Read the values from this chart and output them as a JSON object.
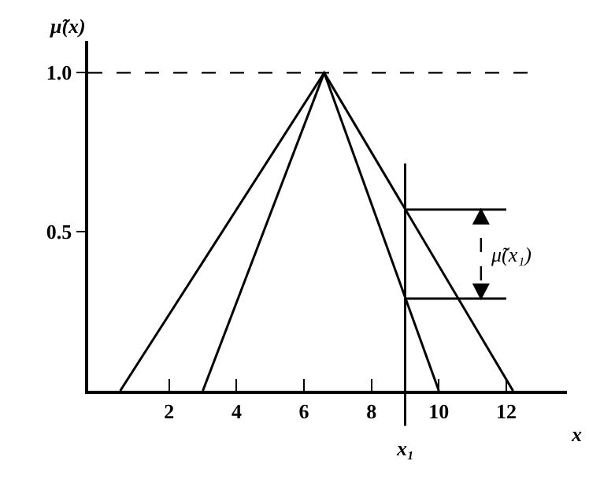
{
  "chart_data": {
    "type": "line",
    "ylabel": "μ̃(x)",
    "xlabel": "x",
    "xlim": [
      -0.4,
      13.8
    ],
    "xticks": [
      2,
      4,
      6,
      8,
      10,
      12
    ],
    "ylim": [
      0,
      1.1
    ],
    "yticks": [
      {
        "value": 0.5,
        "label": "0.5"
      },
      {
        "value": 1,
        "label": "1.0"
      }
    ],
    "marker": "none",
    "series": [
      {
        "color": "#000000",
        "x": [
          0.55,
          6.6,
          12.2
        ],
        "values": [
          0,
          1,
          0
        ]
      },
      {
        "color": "#000000",
        "x": [
          3.0,
          6.6,
          10.0
        ],
        "values": [
          0,
          1,
          0
        ]
      },
      {
        "color": "#000000",
        "x": [
          9.0,
          12.0
        ],
        "values": [
          0.57,
          0.57
        ]
      },
      {
        "color": "#000000",
        "x": [
          9.0,
          12.0
        ],
        "values": [
          0.29,
          0.29
        ]
      }
    ],
    "ref_lines": [
      {
        "axis": "y",
        "value": 1,
        "line_style": "dashed",
        "color": "#000000"
      },
      {
        "axis": "x",
        "value": 9.0,
        "label": "x₁",
        "color": "#000000"
      }
    ],
    "annotations": [
      "μ̃(x₁)"
    ]
  }
}
